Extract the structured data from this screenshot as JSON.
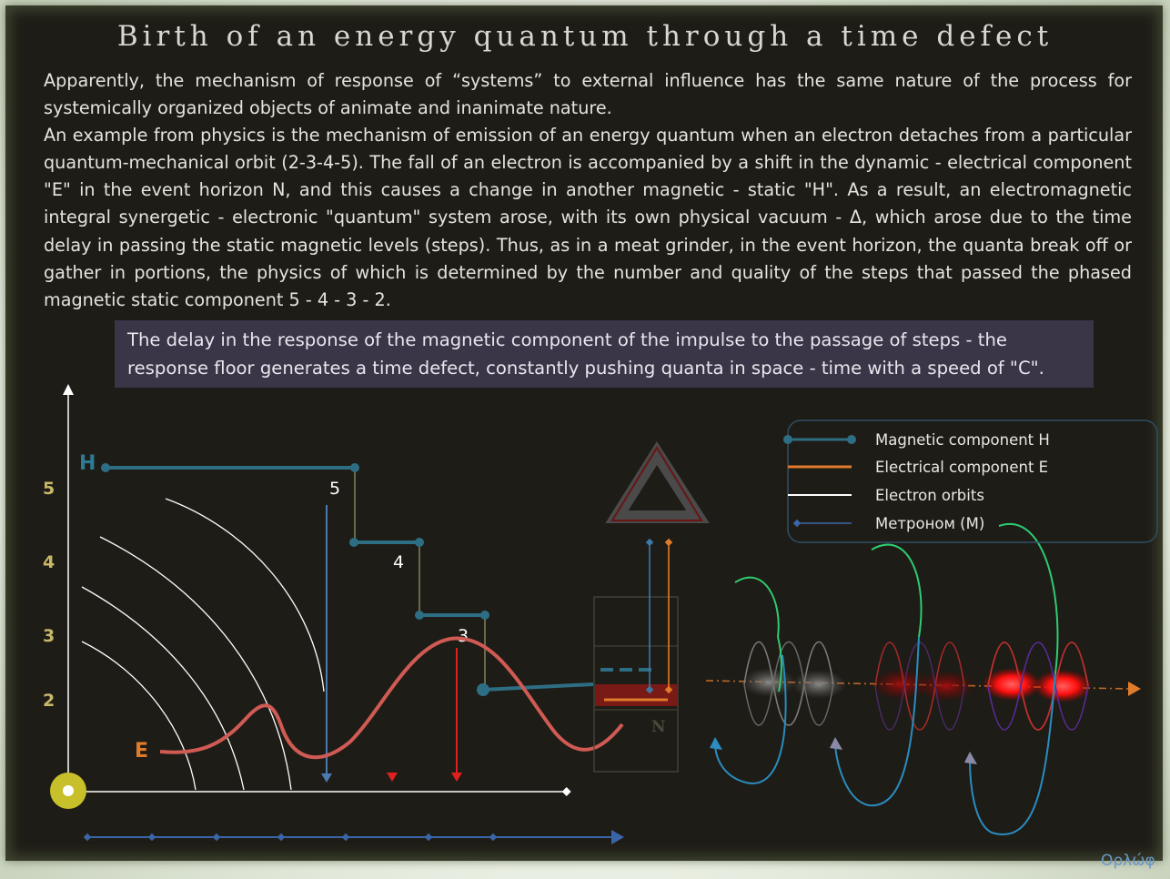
{
  "title": "Birth of an energy quantum through a time defect",
  "intro": {
    "paragraph1": "Apparently, the mechanism of response of “systems” to external influence has the same nature of the process for systemically organized objects of animate and inanimate nature.",
    "paragraph2": "An example from physics is the mechanism of emission of an energy quantum when an electron detaches from a particular quantum-mechanical orbit (2-3-4-5). The fall of an electron is accompanied by a shift in the dynamic - electrical component \"E\" in the event horizon N, and this causes a change in another magnetic - static \"H\". As a result, an electromagnetic integral synergetic - electronic \"quantum\" system arose, with its own physical vacuum - Δ, which arose due to the time delay in passing the static magnetic levels (steps). Thus, as in a meat grinder, in the event horizon, the quanta break off or gather in portions, the physics of which is determined by the number and quality of the steps that passed the phased magnetic static component 5 - 4 - 3 - 2."
  },
  "callout": "The delay in the response of the magnetic component of the impulse to the passage of steps - the response floor  generates a time defect, constantly pushing quanta in space - time with a speed of \"C\".",
  "diagram": {
    "axis_levels": [
      "5",
      "4",
      "3",
      "2"
    ],
    "label_H": "H",
    "label_E": "E",
    "step_labels": [
      "5",
      "4",
      "3"
    ],
    "label_N": "N"
  },
  "legend": {
    "items": [
      {
        "label": "Magnetic component H",
        "color": "#2e6e84"
      },
      {
        "label": "Electrical component E",
        "color": "#e07b2a"
      },
      {
        "label": "Electron orbits",
        "color": "#ffffff"
      },
      {
        "label": "Метроном (M)",
        "color": "#3a66a8"
      }
    ]
  },
  "signature": "Ορλώφ",
  "colors": {
    "background": "#1e1c16",
    "magnetic": "#2e6e84",
    "electric_curve": "#d05a54",
    "label_orange": "#e07b2a",
    "level_numbers": "#c8b86a",
    "callout_bg": "#3a3547"
  }
}
